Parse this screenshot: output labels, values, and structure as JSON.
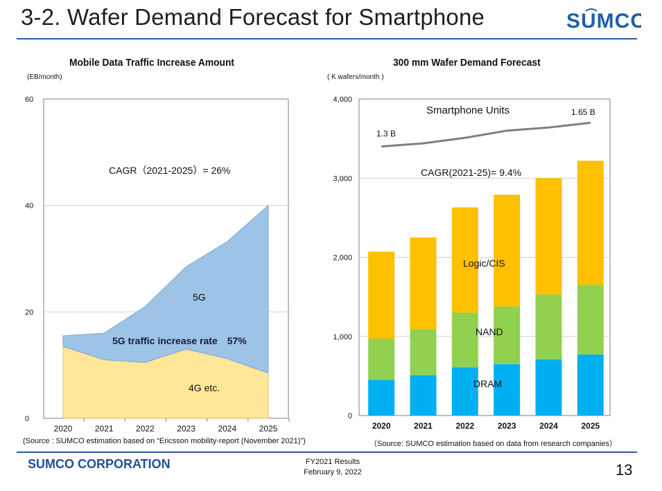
{
  "header": {
    "title": "3-2. Wafer Demand Forecast for Smartphone",
    "logo_text": "SUMCO",
    "accent_color": "#2a5a9a"
  },
  "chart_data": [
    {
      "type": "area",
      "title": "Mobile Data Traffic Increase Amount",
      "unit_label": "(EB/month)",
      "x": [
        "2020",
        "2021",
        "2022",
        "2023",
        "2024",
        "2025"
      ],
      "yticks": [
        "0",
        "20",
        "40",
        "60"
      ],
      "ylim": [
        0,
        60
      ],
      "series": [
        {
          "name": "4G etc.",
          "color": "#ffe699",
          "values": [
            13.5,
            11,
            10.5,
            13,
            11.2,
            8.5
          ]
        },
        {
          "name": "5G",
          "color": "#9dc3e6",
          "values": [
            2,
            5,
            10.5,
            15.5,
            22,
            31.5
          ]
        }
      ],
      "annotations": {
        "cagr": "CAGR（2021-2025）= 26%",
        "label_5g": "5G",
        "label_4g": "4G etc.",
        "rate": "5G traffic increase rate　57%"
      },
      "source": "(Source : SUMCO estimation based on “Ericsson mobility-report (November 2021)”)"
    },
    {
      "type": "bar",
      "stacked": true,
      "title": "300 mm Wafer Demand Forecast",
      "unit_label": "( K wafers/month )",
      "categories": [
        "2020",
        "2021",
        "2022",
        "2023",
        "2024",
        "2025"
      ],
      "yticks": [
        "0",
        "1,000",
        "2,000",
        "3,000",
        "4,000"
      ],
      "ylim": [
        0,
        4000
      ],
      "series": [
        {
          "name": "DRAM",
          "color": "#00b0f0",
          "values": [
            450,
            510,
            610,
            650,
            710,
            770
          ]
        },
        {
          "name": "NAND",
          "color": "#92d050",
          "values": [
            520,
            580,
            690,
            730,
            820,
            880
          ]
        },
        {
          "name": "Logic/CIS",
          "color": "#ffc000",
          "values": [
            1100,
            1160,
            1330,
            1410,
            1470,
            1570
          ]
        }
      ],
      "smartphone_units": {
        "label": "Smartphone Units",
        "line_values": [
          3400,
          3440,
          3510,
          3600,
          3640,
          3700
        ],
        "start_label": "1.3 B",
        "end_label": "1.65 B"
      },
      "annotations": {
        "cagr": "CAGR(2021-25)= 9.4%",
        "label_logic": "Logic/CIS",
        "label_nand": "NAND",
        "label_dram": "DRAM"
      },
      "source": "（Source: SUMCO estimation based on data from research companies）"
    }
  ],
  "footer": {
    "company": "SUMCO CORPORATION",
    "results": "FY2021 Results",
    "date": "February 9, 2022",
    "page": "13"
  }
}
